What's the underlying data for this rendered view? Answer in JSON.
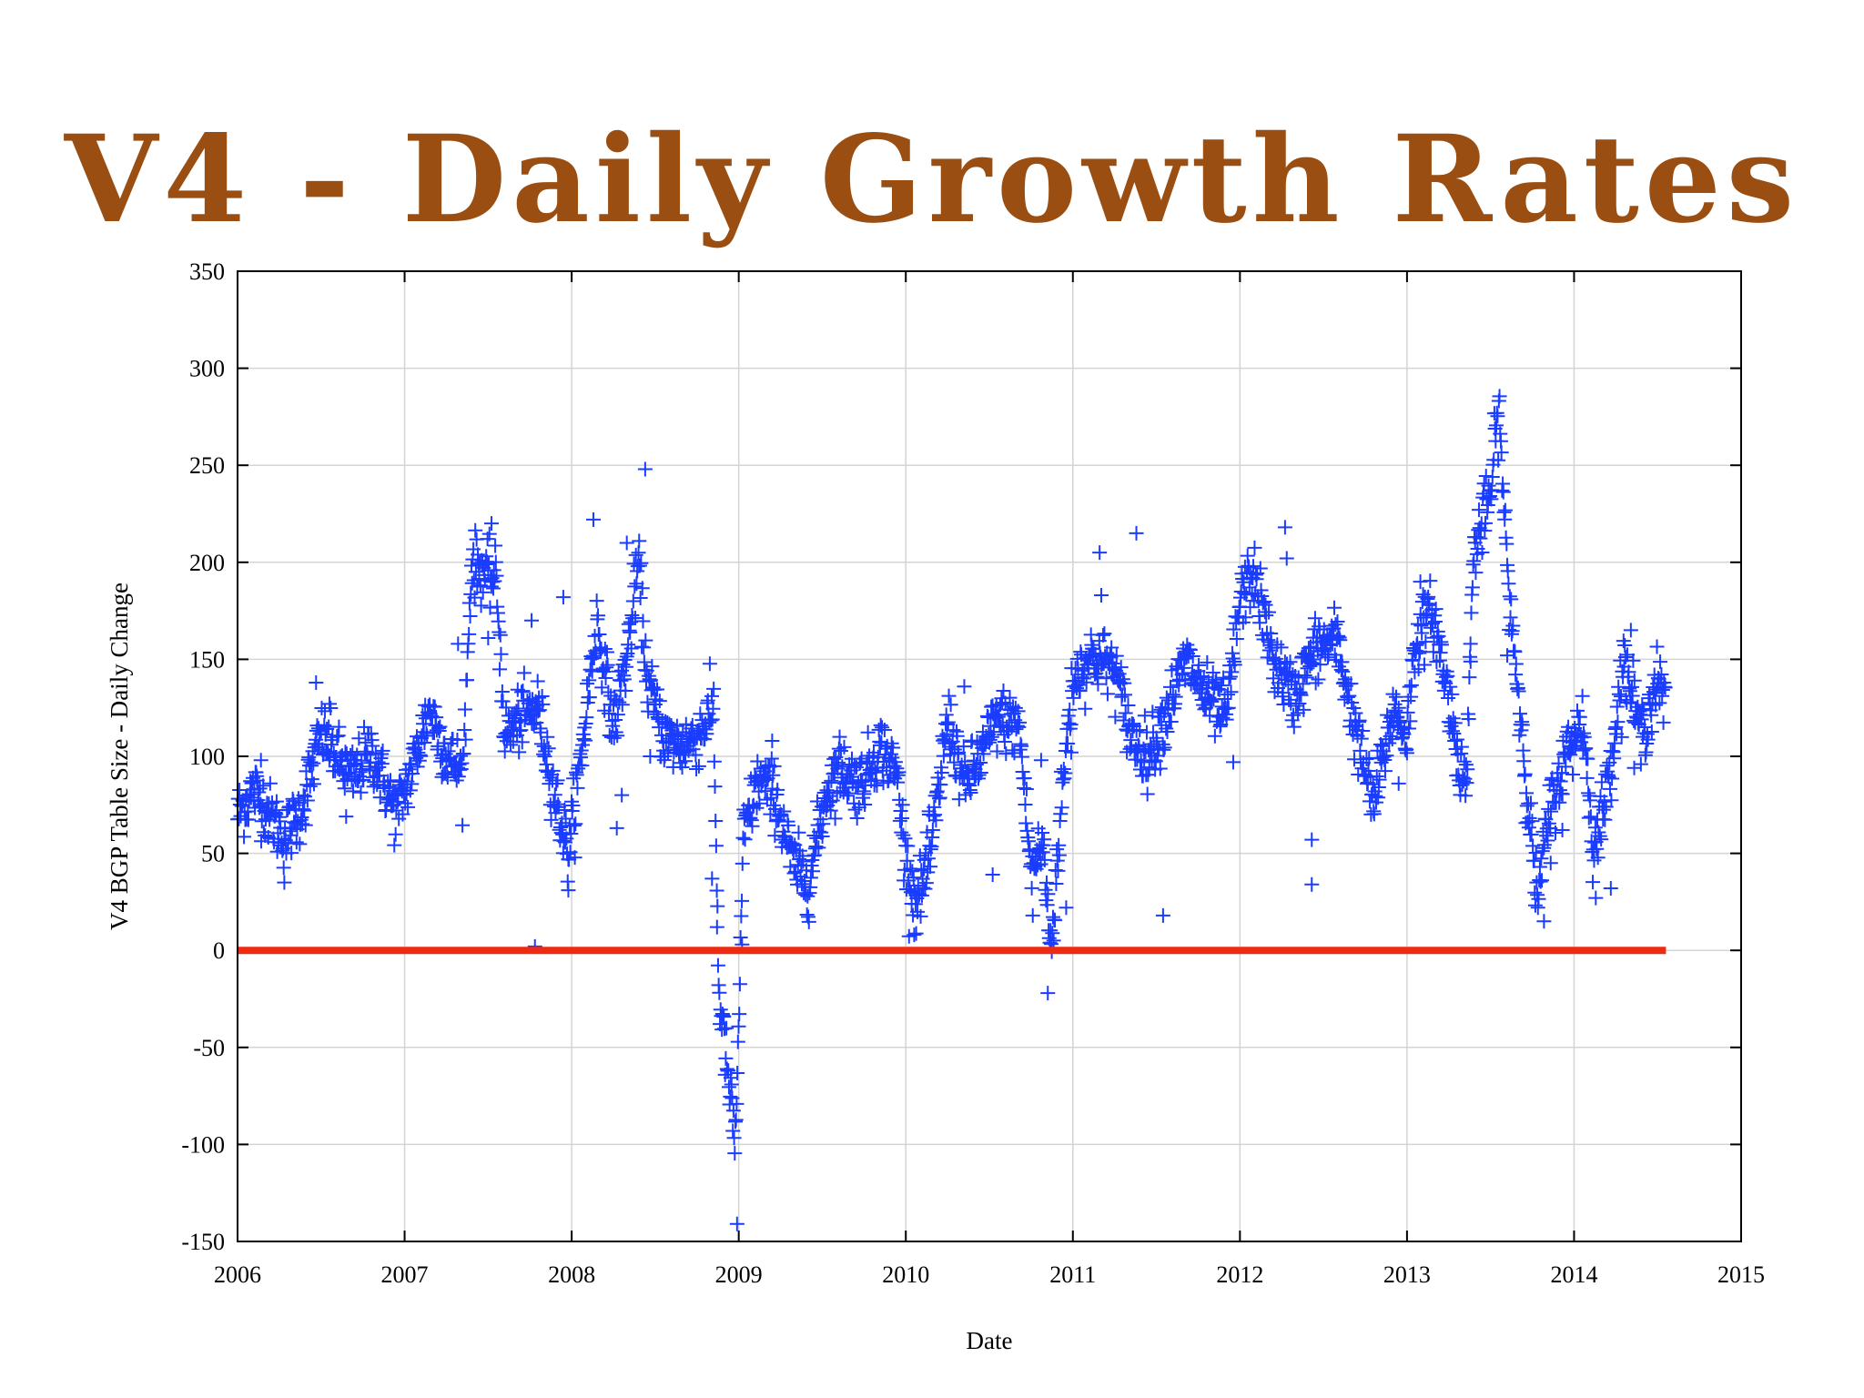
{
  "slide_title": "V4 - Daily Growth Rates",
  "chart_data": {
    "type": "scatter",
    "title": "V4 - Daily Growth Rates",
    "xlabel": "Date",
    "ylabel": "V4 BGP Table Size - Daily Change",
    "xlim": [
      2006,
      2015
    ],
    "ylim": [
      -150,
      350
    ],
    "x_ticks": [
      "2006",
      "2007",
      "2008",
      "2009",
      "2010",
      "2011",
      "2012",
      "2013",
      "2014",
      "2015"
    ],
    "y_ticks": [
      "-150",
      "-100",
      "-50",
      "0",
      "50",
      "100",
      "150",
      "200",
      "250",
      "300",
      "350"
    ],
    "grid": true,
    "marker": "plus",
    "colors": {
      "points": "#1a3cff",
      "zero_line": "#ef2a12",
      "grid": "#d4d4d4",
      "title": "#9a4e12"
    },
    "reference_line": {
      "y": 0,
      "x_range": [
        2006,
        2014.55
      ]
    },
    "trend": [
      [
        2006.0,
        70
      ],
      [
        2006.1,
        83
      ],
      [
        2006.18,
        72
      ],
      [
        2006.28,
        58
      ],
      [
        2006.38,
        72
      ],
      [
        2006.5,
        112
      ],
      [
        2006.58,
        102
      ],
      [
        2006.68,
        88
      ],
      [
        2006.8,
        103
      ],
      [
        2006.95,
        70
      ],
      [
        2007.05,
        95
      ],
      [
        2007.15,
        125
      ],
      [
        2007.25,
        100
      ],
      [
        2007.35,
        92
      ],
      [
        2007.4,
        200
      ],
      [
        2007.55,
        190
      ],
      [
        2007.6,
        110
      ],
      [
        2007.7,
        120
      ],
      [
        2007.8,
        125
      ],
      [
        2007.9,
        80
      ],
      [
        2007.98,
        50
      ],
      [
        2008.05,
        95
      ],
      [
        2008.15,
        170
      ],
      [
        2008.25,
        115
      ],
      [
        2008.33,
        150
      ],
      [
        2008.4,
        200
      ],
      [
        2008.45,
        140
      ],
      [
        2008.55,
        110
      ],
      [
        2008.65,
        105
      ],
      [
        2008.75,
        110
      ],
      [
        2008.85,
        125
      ],
      [
        2008.88,
        -20
      ],
      [
        2008.93,
        -60
      ],
      [
        2008.98,
        -100
      ],
      [
        2009.03,
        60
      ],
      [
        2009.12,
        88
      ],
      [
        2009.22,
        80
      ],
      [
        2009.32,
        45
      ],
      [
        2009.42,
        35
      ],
      [
        2009.52,
        80
      ],
      [
        2009.6,
        95
      ],
      [
        2009.72,
        85
      ],
      [
        2009.85,
        105
      ],
      [
        2009.95,
        90
      ],
      [
        2010.0,
        45
      ],
      [
        2010.07,
        25
      ],
      [
        2010.15,
        50
      ],
      [
        2010.25,
        120
      ],
      [
        2010.35,
        85
      ],
      [
        2010.45,
        100
      ],
      [
        2010.55,
        120
      ],
      [
        2010.68,
        115
      ],
      [
        2010.75,
        40
      ],
      [
        2010.82,
        55
      ],
      [
        2010.87,
        0
      ],
      [
        2010.93,
        75
      ],
      [
        2011.0,
        140
      ],
      [
        2011.12,
        152
      ],
      [
        2011.25,
        145
      ],
      [
        2011.35,
        110
      ],
      [
        2011.45,
        100
      ],
      [
        2011.55,
        120
      ],
      [
        2011.68,
        150
      ],
      [
        2011.8,
        130
      ],
      [
        2011.92,
        120
      ],
      [
        2012.0,
        180
      ],
      [
        2012.08,
        195
      ],
      [
        2012.2,
        150
      ],
      [
        2012.32,
        130
      ],
      [
        2012.45,
        155
      ],
      [
        2012.58,
        160
      ],
      [
        2012.7,
        110
      ],
      [
        2012.8,
        75
      ],
      [
        2012.92,
        125
      ],
      [
        2013.0,
        110
      ],
      [
        2013.05,
        160
      ],
      [
        2013.15,
        175
      ],
      [
        2013.25,
        130
      ],
      [
        2013.35,
        80
      ],
      [
        2013.4,
        205
      ],
      [
        2013.5,
        235
      ],
      [
        2013.55,
        280
      ],
      [
        2013.6,
        195
      ],
      [
        2013.68,
        120
      ],
      [
        2013.78,
        25
      ],
      [
        2013.85,
        70
      ],
      [
        2013.95,
        100
      ],
      [
        2014.05,
        120
      ],
      [
        2014.12,
        50
      ],
      [
        2014.2,
        85
      ],
      [
        2014.3,
        150
      ],
      [
        2014.4,
        110
      ],
      [
        2014.5,
        140
      ],
      [
        2014.55,
        125
      ]
    ],
    "scatter_sd": 8,
    "outliers": [
      [
        2006.14,
        98
      ],
      [
        2006.28,
        35
      ],
      [
        2006.47,
        138
      ],
      [
        2006.55,
        127
      ],
      [
        2006.65,
        69
      ],
      [
        2007.32,
        158
      ],
      [
        2007.52,
        220
      ],
      [
        2007.5,
        161
      ],
      [
        2007.76,
        170
      ],
      [
        2007.78,
        2
      ],
      [
        2007.98,
        31
      ],
      [
        2007.95,
        182
      ],
      [
        2008.13,
        222
      ],
      [
        2008.27,
        63
      ],
      [
        2008.3,
        80
      ],
      [
        2008.33,
        210
      ],
      [
        2008.44,
        248
      ],
      [
        2008.47,
        100
      ],
      [
        2008.84,
        37
      ],
      [
        2008.87,
        12
      ],
      [
        2008.99,
        -141
      ],
      [
        2009.02,
        3
      ],
      [
        2009.2,
        108
      ],
      [
        2010.05,
        8
      ],
      [
        2010.14,
        70
      ],
      [
        2010.35,
        136
      ],
      [
        2010.52,
        39
      ],
      [
        2010.76,
        18
      ],
      [
        2010.81,
        98
      ],
      [
        2010.85,
        -22
      ],
      [
        2010.96,
        22
      ],
      [
        2010.99,
        102
      ],
      [
        2011.16,
        205
      ],
      [
        2011.17,
        183
      ],
      [
        2011.38,
        215
      ],
      [
        2011.54,
        18
      ],
      [
        2011.96,
        97
      ],
      [
        2012.27,
        218
      ],
      [
        2012.28,
        202
      ],
      [
        2012.43,
        57
      ],
      [
        2012.43,
        34
      ],
      [
        2012.95,
        86
      ],
      [
        2013.08,
        190
      ],
      [
        2013.38,
        158
      ],
      [
        2013.6,
        152
      ],
      [
        2013.82,
        15
      ],
      [
        2013.93,
        62
      ],
      [
        2013.86,
        45
      ],
      [
        2014.13,
        27
      ],
      [
        2014.22,
        32
      ],
      [
        2014.34,
        165
      ],
      [
        2014.36,
        94
      ]
    ]
  }
}
